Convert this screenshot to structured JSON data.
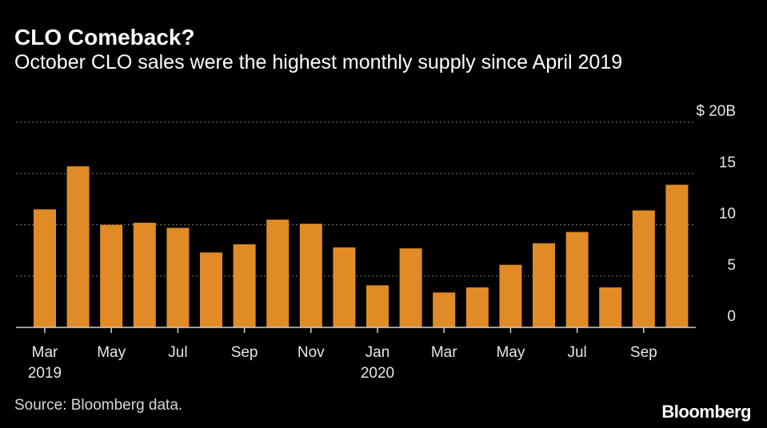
{
  "title": "CLO Comeback?",
  "subtitle": "October CLO sales were the highest monthly supply since April 2019",
  "source": "Source: Bloomberg data.",
  "brand": "Bloomberg",
  "colors": {
    "bar": "#E08B25",
    "background": "#000000",
    "grid": "#7a7a7a",
    "text": "#ffffff"
  },
  "chart_data": {
    "type": "bar",
    "categories": [
      "Mar 2019",
      "Apr 2019",
      "May 2019",
      "Jun 2019",
      "Jul 2019",
      "Aug 2019",
      "Sep 2019",
      "Oct 2019",
      "Nov 2019",
      "Dec 2019",
      "Jan 2020",
      "Feb 2020",
      "Mar 2020",
      "Apr 2020",
      "May 2020",
      "Jun 2020",
      "Jul 2020",
      "Aug 2020",
      "Sep 2020",
      "Oct 2020"
    ],
    "values": [
      11.5,
      15.7,
      10.0,
      10.2,
      9.7,
      7.3,
      8.1,
      10.5,
      10.1,
      7.8,
      4.1,
      7.7,
      3.4,
      3.9,
      6.1,
      8.2,
      9.3,
      3.9,
      11.4,
      13.9
    ],
    "ylim": [
      0,
      20
    ],
    "yticks": [
      {
        "value": 20,
        "label": "$ 20B"
      },
      {
        "value": 15,
        "label": "15"
      },
      {
        "value": 10,
        "label": "10"
      },
      {
        "value": 5,
        "label": "5"
      },
      {
        "value": 0,
        "label": "0"
      }
    ],
    "xticks": [
      {
        "index": 0,
        "label": "Mar",
        "sublabel": "2019"
      },
      {
        "index": 2,
        "label": "May",
        "sublabel": ""
      },
      {
        "index": 4,
        "label": "Jul",
        "sublabel": ""
      },
      {
        "index": 6,
        "label": "Sep",
        "sublabel": ""
      },
      {
        "index": 8,
        "label": "Nov",
        "sublabel": ""
      },
      {
        "index": 10,
        "label": "Jan",
        "sublabel": "2020"
      },
      {
        "index": 12,
        "label": "Mar",
        "sublabel": ""
      },
      {
        "index": 14,
        "label": "May",
        "sublabel": ""
      },
      {
        "index": 16,
        "label": "Jul",
        "sublabel": ""
      },
      {
        "index": 18,
        "label": "Sep",
        "sublabel": ""
      }
    ],
    "grid": true,
    "legend": "none",
    "xlabel": "",
    "ylabel": ""
  }
}
